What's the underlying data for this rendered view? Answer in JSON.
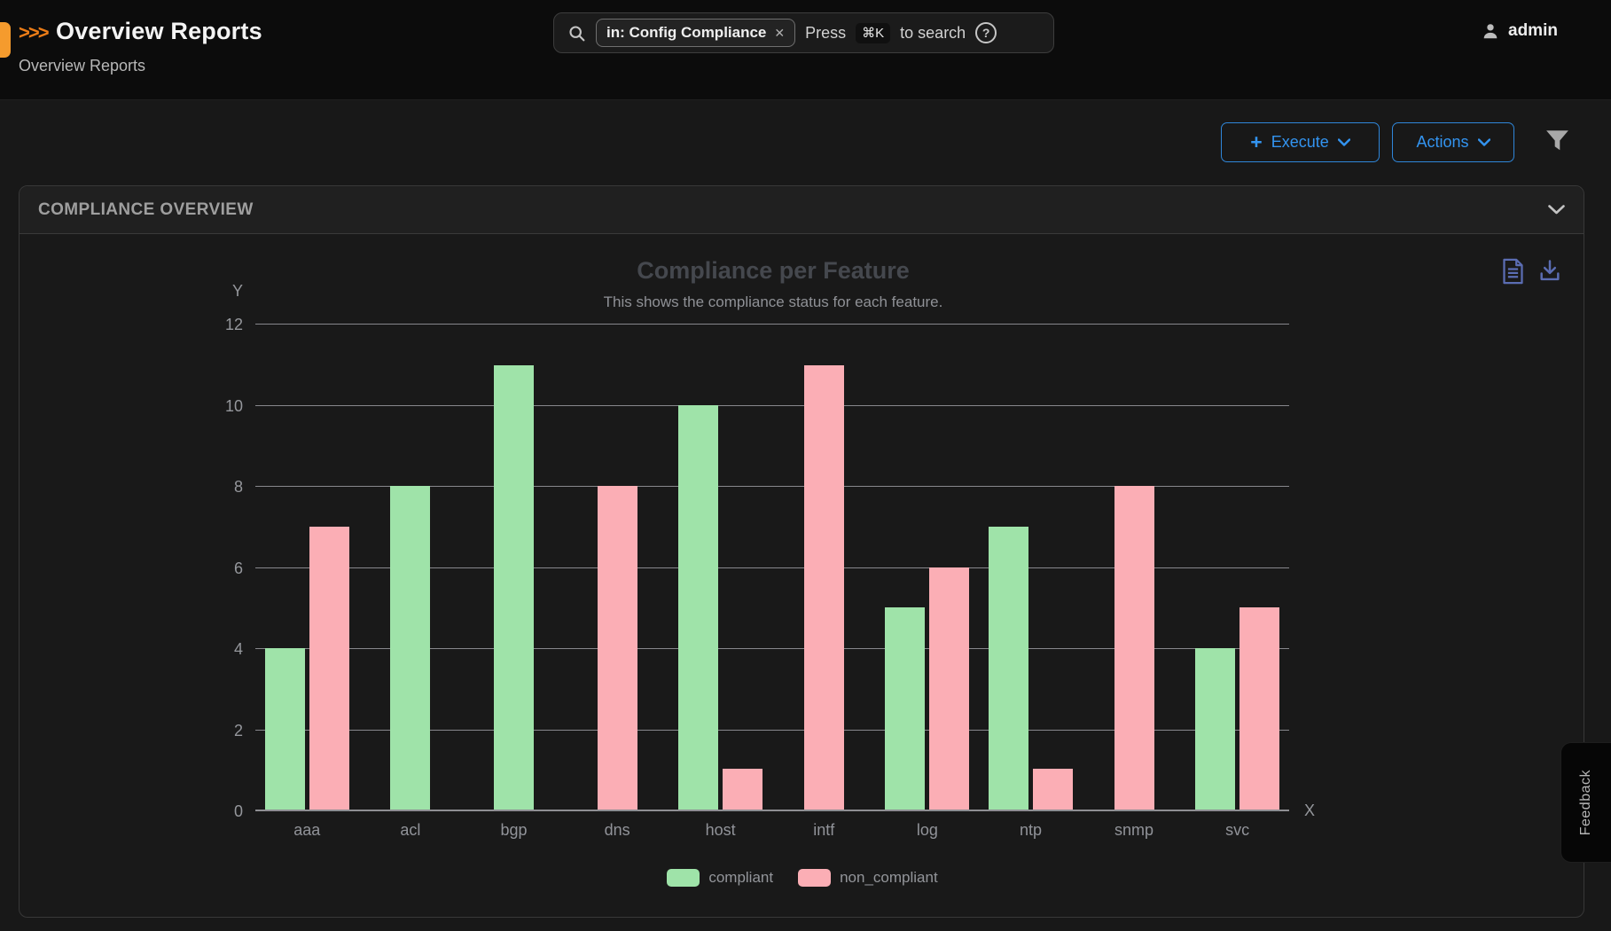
{
  "header": {
    "logo": ">>>",
    "title": "Overview Reports",
    "breadcrumb": "Overview Reports",
    "search": {
      "chip_label": "in: Config Compliance",
      "chip_close": "✕",
      "hint_press": "Press",
      "shortcut": "⌘K",
      "hint_suffix": "to search",
      "help_glyph": "?"
    },
    "user": "admin"
  },
  "toolbar": {
    "execute_plus": "+",
    "execute_label": "Execute",
    "actions_label": "Actions"
  },
  "panel": {
    "title": "COMPLIANCE OVERVIEW"
  },
  "feedback_label": "Feedback",
  "colors": {
    "accent_blue": "#3394f0",
    "icon_blue": "#5b6db3",
    "brand_orange": "#f59b2d",
    "compliant_green": "#9fe3a9",
    "non_compliant_pink": "#fbaeb5",
    "gridline_gray": "#87878c"
  },
  "chart_data": {
    "type": "bar",
    "title": "Compliance per Feature",
    "subtitle": "This shows the compliance status for each feature.",
    "xlabel": "X",
    "ylabel": "Y",
    "categories": [
      "aaa",
      "acl",
      "bgp",
      "dns",
      "host",
      "intf",
      "log",
      "ntp",
      "snmp",
      "svc"
    ],
    "series": [
      {
        "name": "compliant",
        "color": "#9fe3a9",
        "values": [
          4,
          8,
          11,
          0,
          10,
          0,
          5,
          7,
          0,
          4
        ]
      },
      {
        "name": "non_compliant",
        "color": "#fbaeb5",
        "values": [
          7,
          0,
          0,
          8,
          1,
          11,
          6,
          1,
          8,
          5
        ]
      }
    ],
    "ylim": [
      0,
      12
    ],
    "ytick_step": 2,
    "grid": true,
    "legend_position": "bottom"
  }
}
